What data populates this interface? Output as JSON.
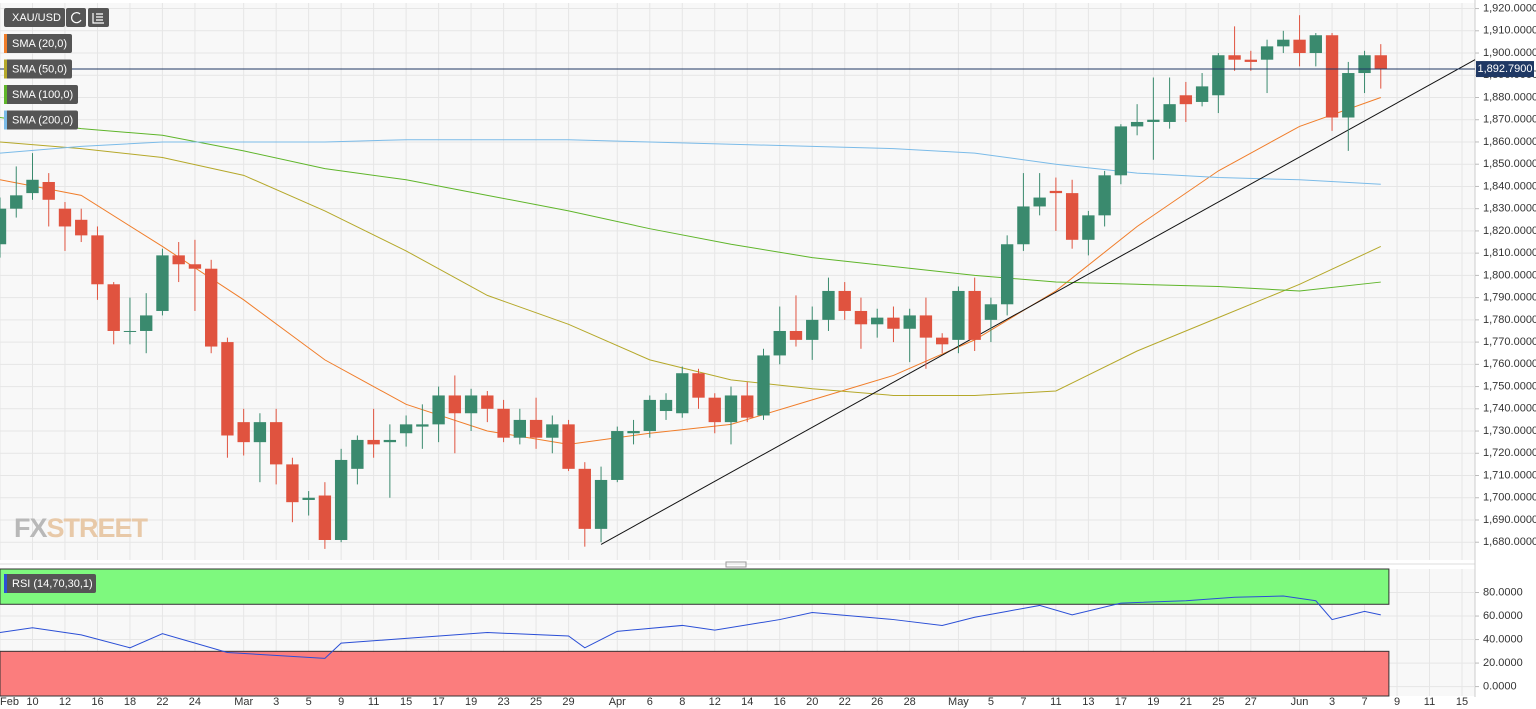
{
  "chart_data": {
    "type": "candlestick",
    "symbol": "XAU/USD",
    "watermark": [
      "FX",
      "STREET"
    ],
    "up_color": "#3a8a6e",
    "down_color": "#e0533f",
    "open": [
      1814,
      1830,
      1837,
      1842,
      1830,
      1825,
      1818,
      1796,
      1775,
      1775,
      1784,
      1809,
      1805,
      1803,
      1770,
      1734,
      1725,
      1734,
      1715,
      1699,
      1701,
      1681,
      1713,
      1726,
      1725,
      1729,
      1732,
      1733,
      1746,
      1738,
      1746,
      1740,
      1727,
      1735,
      1727,
      1733,
      1713,
      1686,
      1708,
      1729,
      1730,
      1739,
      1738,
      1756,
      1745,
      1734,
      1746,
      1737,
      1764,
      1775,
      1771,
      1780,
      1793,
      1784,
      1778,
      1781,
      1776,
      1782,
      1772,
      1771,
      1793,
      1780,
      1787,
      1814,
      1831,
      1838,
      1837,
      1816,
      1827,
      1845,
      1867,
      1869,
      1869,
      1881,
      1878,
      1881,
      1899,
      1897,
      1897,
      1903,
      1906,
      1900,
      1908,
      1871,
      1891,
      1899
    ],
    "high": [
      1835,
      1849,
      1855,
      1846,
      1833,
      1830,
      1822,
      1797,
      1790,
      1792,
      1812,
      1815,
      1816,
      1807,
      1772,
      1740,
      1738,
      1740,
      1718,
      1703,
      1707,
      1722,
      1728,
      1740,
      1733,
      1737,
      1742,
      1750,
      1755,
      1749,
      1748,
      1744,
      1740,
      1745,
      1737,
      1735,
      1716,
      1714,
      1732,
      1735,
      1746,
      1747,
      1759,
      1758,
      1747,
      1750,
      1752,
      1767,
      1786,
      1791,
      1786,
      1799,
      1797,
      1790,
      1785,
      1786,
      1785,
      1790,
      1774,
      1795,
      1799,
      1790,
      1818,
      1846,
      1846,
      1844,
      1843,
      1829,
      1847,
      1868,
      1877,
      1889,
      1889,
      1887,
      1891,
      1900,
      1912,
      1901,
      1906,
      1910,
      1917,
      1909,
      1909,
      1896,
      1901,
      1904
    ],
    "low": [
      1808,
      1826,
      1834,
      1822,
      1811,
      1815,
      1789,
      1769,
      1769,
      1765,
      1782,
      1797,
      1784,
      1765,
      1718,
      1719,
      1707,
      1706,
      1689,
      1692,
      1677,
      1680,
      1706,
      1718,
      1700,
      1723,
      1722,
      1725,
      1720,
      1730,
      1734,
      1725,
      1724,
      1722,
      1720,
      1712,
      1678,
      1680,
      1707,
      1724,
      1727,
      1735,
      1736,
      1740,
      1729,
      1724,
      1734,
      1735,
      1760,
      1768,
      1762,
      1775,
      1780,
      1767,
      1772,
      1770,
      1761,
      1758,
      1765,
      1765,
      1766,
      1770,
      1782,
      1811,
      1827,
      1820,
      1812,
      1809,
      1822,
      1841,
      1863,
      1852,
      1866,
      1869,
      1876,
      1873,
      1892,
      1892,
      1882,
      1900,
      1894,
      1894,
      1865,
      1856,
      1882,
      1884
    ],
    "close": [
      1830,
      1836,
      1843,
      1834,
      1822,
      1818,
      1796,
      1775,
      1775,
      1782,
      1809,
      1805,
      1803,
      1768,
      1728,
      1725,
      1734,
      1715,
      1698,
      1700,
      1681,
      1717,
      1726,
      1724,
      1726,
      1733,
      1733,
      1746,
      1738,
      1746,
      1740,
      1727,
      1735,
      1727,
      1733,
      1713,
      1686,
      1708,
      1730,
      1730,
      1744,
      1744,
      1756,
      1745,
      1734,
      1746,
      1736,
      1764,
      1775,
      1771,
      1780,
      1793,
      1784,
      1778,
      1781,
      1776,
      1782,
      1772,
      1769,
      1793,
      1771,
      1787,
      1814,
      1831,
      1835,
      1837,
      1816,
      1827,
      1845,
      1867,
      1869,
      1870,
      1877,
      1877,
      1885,
      1899,
      1897,
      1896,
      1903,
      1906,
      1900,
      1908,
      1871,
      1891,
      1899,
      1892.79
    ],
    "sma_x": [
      0,
      5,
      10,
      15,
      20,
      25,
      30,
      35,
      40,
      45,
      50,
      55,
      60,
      65,
      70,
      75,
      80,
      85
    ],
    "sma": [
      {
        "name": "SMA (20,0)",
        "color": "#f07d2a",
        "values": [
          1843,
          1836,
          1813,
          1789,
          1762,
          1742,
          1730,
          1724,
          1729,
          1733,
          1744,
          1755,
          1771,
          1793,
          1822,
          1847,
          1867,
          1880
        ]
      },
      {
        "name": "SMA (50,0)",
        "color": "#b5a82a",
        "values": [
          1860,
          1857,
          1853,
          1845,
          1829,
          1811,
          1791,
          1778,
          1762,
          1753,
          1749,
          1746,
          1746,
          1748,
          1766,
          1781,
          1796,
          1813
        ]
      },
      {
        "name": "SMA (100,0)",
        "color": "#5fb52a",
        "values": [
          1871,
          1866,
          1863,
          1856,
          1848,
          1843,
          1836,
          1829,
          1821,
          1814,
          1808,
          1804,
          1800,
          1797,
          1796,
          1795,
          1793,
          1797
        ]
      },
      {
        "name": "SMA (200,0)",
        "color": "#7bbbe8",
        "values": [
          1855,
          1858,
          1860,
          1860,
          1860,
          1861,
          1861,
          1861,
          1860,
          1859,
          1858,
          1857,
          1855,
          1850,
          1846,
          1844,
          1843,
          1841
        ]
      }
    ],
    "trendline": {
      "x": [
        37,
        90.8
      ],
      "values": [
        1679,
        1897
      ]
    },
    "last": {
      "value": 1892.79,
      "label": "1,892.7900"
    },
    "xlim": [
      0,
      90.8
    ],
    "ylim": [
      1672,
      1922.5
    ],
    "yticks": [
      {
        "value": 1680,
        "label": "1,680.0000"
      },
      {
        "value": 1690,
        "label": "1,690.0000"
      },
      {
        "value": 1700,
        "label": "1,700.0000"
      },
      {
        "value": 1710,
        "label": "1,710.0000"
      },
      {
        "value": 1720,
        "label": "1,720.0000"
      },
      {
        "value": 1730,
        "label": "1,730.0000"
      },
      {
        "value": 1740,
        "label": "1,740.0000"
      },
      {
        "value": 1750,
        "label": "1,750.0000"
      },
      {
        "value": 1760,
        "label": "1,760.0000"
      },
      {
        "value": 1770,
        "label": "1,770.0000"
      },
      {
        "value": 1780,
        "label": "1,780.0000"
      },
      {
        "value": 1790,
        "label": "1,790.0000"
      },
      {
        "value": 1800,
        "label": "1,800.0000"
      },
      {
        "value": 1810,
        "label": "1,810.0000"
      },
      {
        "value": 1820,
        "label": "1,820.0000"
      },
      {
        "value": 1830,
        "label": "1,830.0000"
      },
      {
        "value": 1840,
        "label": "1,840.0000"
      },
      {
        "value": 1850,
        "label": "1,850.0000"
      },
      {
        "value": 1860,
        "label": "1,860.0000"
      },
      {
        "value": 1870,
        "label": "1,870.0000"
      },
      {
        "value": 1880,
        "label": "1,880.0000"
      },
      {
        "value": 1890,
        "label": "1,890.0000"
      },
      {
        "value": 1900,
        "label": "1,900.0000"
      },
      {
        "value": 1910,
        "label": "1,910.0000"
      },
      {
        "value": 1920,
        "label": "1,920.0000"
      }
    ],
    "xticks": [
      {
        "value": 0,
        "label": "Feb"
      },
      {
        "value": 2,
        "label": "10"
      },
      {
        "value": 4,
        "label": "12"
      },
      {
        "value": 6,
        "label": "16"
      },
      {
        "value": 8,
        "label": "18"
      },
      {
        "value": 10,
        "label": "22"
      },
      {
        "value": 12,
        "label": "24"
      },
      {
        "value": 15,
        "label": "Mar"
      },
      {
        "value": 17,
        "label": "3"
      },
      {
        "value": 19,
        "label": "5"
      },
      {
        "value": 21,
        "label": "9"
      },
      {
        "value": 23,
        "label": "11"
      },
      {
        "value": 25,
        "label": "15"
      },
      {
        "value": 27,
        "label": "17"
      },
      {
        "value": 29,
        "label": "19"
      },
      {
        "value": 31,
        "label": "23"
      },
      {
        "value": 33,
        "label": "25"
      },
      {
        "value": 35,
        "label": "29"
      },
      {
        "value": 38,
        "label": "Apr"
      },
      {
        "value": 40,
        "label": "6"
      },
      {
        "value": 42,
        "label": "8"
      },
      {
        "value": 44,
        "label": "12"
      },
      {
        "value": 46,
        "label": "14"
      },
      {
        "value": 48,
        "label": "16"
      },
      {
        "value": 50,
        "label": "20"
      },
      {
        "value": 52,
        "label": "22"
      },
      {
        "value": 54,
        "label": "26"
      },
      {
        "value": 56,
        "label": "28"
      },
      {
        "value": 59,
        "label": "May"
      },
      {
        "value": 61,
        "label": "5"
      },
      {
        "value": 63,
        "label": "7"
      },
      {
        "value": 65,
        "label": "11"
      },
      {
        "value": 67,
        "label": "13"
      },
      {
        "value": 69,
        "label": "17"
      },
      {
        "value": 71,
        "label": "19"
      },
      {
        "value": 73,
        "label": "21"
      },
      {
        "value": 75,
        "label": "25"
      },
      {
        "value": 77,
        "label": "27"
      },
      {
        "value": 80,
        "label": "Jun"
      },
      {
        "value": 82,
        "label": "3"
      },
      {
        "value": 84,
        "label": "7"
      },
      {
        "value": 86,
        "label": "9"
      },
      {
        "value": 88,
        "label": "11"
      },
      {
        "value": 90,
        "label": "15"
      }
    ],
    "grid": true,
    "rsi": {
      "name": "RSI (14,70,30,1)",
      "color": "#2b4fd6",
      "levels": [
        70,
        30
      ],
      "x": [
        0,
        2,
        5,
        8,
        10,
        14,
        20,
        21,
        25,
        30,
        35,
        36,
        38,
        42,
        44,
        48,
        50,
        55,
        58,
        60,
        62,
        64,
        66,
        69,
        73,
        76,
        79,
        81,
        82,
        84,
        85
      ],
      "values": [
        46,
        50,
        44,
        33,
        45,
        29,
        24,
        37,
        41,
        46,
        43,
        33,
        47,
        52,
        48,
        57,
        63,
        57,
        52,
        59,
        64,
        69,
        61,
        71,
        73,
        76,
        77,
        73,
        57,
        64,
        61
      ],
      "ylim": [
        -8,
        100
      ],
      "yticks": [
        {
          "value": 0,
          "label": "0.0000"
        },
        {
          "value": 20,
          "label": "20.0000"
        },
        {
          "value": 40,
          "label": "40.0000"
        },
        {
          "value": 60,
          "label": "60.0000"
        },
        {
          "value": 80,
          "label": "80.0000"
        }
      ]
    }
  }
}
